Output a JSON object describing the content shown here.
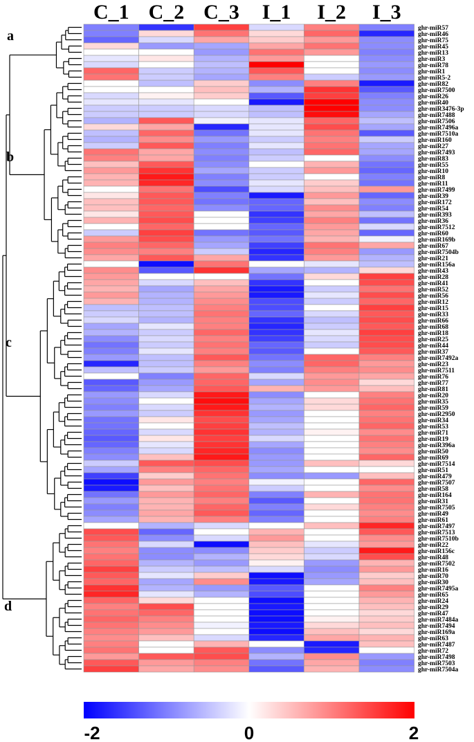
{
  "chart_data": {
    "type": "heatmap",
    "title": "",
    "columns": [
      "C_1",
      "C_2",
      "C_3",
      "I_1",
      "I_2",
      "I_3"
    ],
    "rows": [
      "ghr-miR57",
      "ghr-miR46",
      "ghr-miR75",
      "ghr-miR45",
      "ghr-miR13",
      "ghr-miR3",
      "ghr-miR78",
      "ghr-miR1",
      "ghr-miR5-2",
      "ghr-miR82",
      "ghr-miR7500",
      "ghr-miR26",
      "ghr-miR40",
      "ghr-miR3476-3p",
      "ghr-miR7488",
      "ghr-miR7506",
      "ghr-miR7496a",
      "ghr-miR7510a",
      "ghr-miR160",
      "ghr-miR27",
      "ghr-miR7493",
      "ghr-miR83",
      "ghr-miR55",
      "ghr-miR10",
      "ghr-miR8",
      "ghr-miR11",
      "ghr-miR7499",
      "ghr-miR39",
      "ghr-miR172",
      "ghr-miR54",
      "ghr-miR393",
      "ghr-miR36",
      "ghr-miR7512",
      "ghr-miR60",
      "ghr-miR169b",
      "ghr-miR67",
      "ghr-miR7504b",
      "ghr-miR21",
      "ghr-miR156a",
      "ghr-miR43",
      "ghr-miR28",
      "ghr-miR41",
      "ghr-miR52",
      "ghr-miR56",
      "ghr-miR12",
      "ghr-miR15",
      "ghr-miR33",
      "ghr-miR66",
      "ghr-miR68",
      "ghr-miR18",
      "ghr-miR25",
      "ghr-miR44",
      "ghr-miR37",
      "ghr-miR7492a",
      "ghr-miR23",
      "ghr-miR7511",
      "ghr-miR76",
      "ghr-miR77",
      "ghr-miR81",
      "ghr-miR20",
      "ghr-miR35",
      "ghr-miR59",
      "ghr-miR2950",
      "ghr-miR34",
      "ghr-miR53",
      "ghr-miR71",
      "ghr-miR19",
      "ghr-miR396a",
      "ghr-miR50",
      "ghr-miR69",
      "ghr-miR7514",
      "ghr-miR51",
      "ghr-miR479",
      "ghr-miR7507",
      "ghr-miR58",
      "ghr-miR164",
      "ghr-miR31",
      "ghr-miR7505",
      "ghr-miR49",
      "ghr-miR61",
      "ghr-miR7497",
      "ghr-miR7513",
      "ghr-miR7510b",
      "ghr-miR22",
      "ghr-miR156c",
      "ghr-miR48",
      "ghr-miR7502",
      "ghr-miR16",
      "ghr-miR70",
      "ghr-miR30",
      "ghr-miR7495a",
      "ghr-miR65",
      "ghr-miR24",
      "ghr-miR29",
      "ghr-miR47",
      "ghr-miR7484a",
      "ghr-miR7494",
      "ghr-miR169a",
      "ghr-miR63",
      "ghr-miR7487",
      "ghr-miR72",
      "ghr-miR7498",
      "ghr-miR7503",
      "ghr-miR7504a"
    ],
    "values": [
      [
        -1.0,
        -1.6,
        1.5,
        -0.3,
        1.0,
        -1.0
      ],
      [
        -1.0,
        0.3,
        1.1,
        0.3,
        1.2,
        -1.7
      ],
      [
        -1.2,
        -0.3,
        0.7,
        0.4,
        0.8,
        -0.9
      ],
      [
        0.3,
        -0.8,
        -0.7,
        0.7,
        1.1,
        -0.9
      ],
      [
        0.0,
        0.0,
        -0.8,
        1.1,
        0.8,
        -1.0
      ],
      [
        -0.2,
        0.2,
        -0.6,
        0.8,
        0.0,
        -0.9
      ],
      [
        -0.3,
        0.0,
        -0.5,
        2.0,
        0.0,
        -0.8
      ],
      [
        1.2,
        -0.4,
        -0.6,
        1.3,
        0.0,
        -0.9
      ],
      [
        1.1,
        -0.4,
        -0.7,
        1.0,
        -0.4,
        -0.8
      ],
      [
        0.0,
        -0.5,
        0.4,
        -0.9,
        1.0,
        -1.8
      ],
      [
        0.0,
        0.0,
        0.5,
        -0.6,
        1.6,
        -1.3
      ],
      [
        -0.3,
        0.1,
        0.4,
        -1.3,
        1.5,
        -1.0
      ],
      [
        -0.2,
        -0.2,
        0.0,
        -1.8,
        2.0,
        -0.9
      ],
      [
        -0.4,
        -0.4,
        -0.3,
        -0.5,
        2.0,
        -0.9
      ],
      [
        -0.4,
        -0.4,
        -0.3,
        -0.5,
        1.9,
        -0.7
      ],
      [
        -0.6,
        1.3,
        -0.1,
        -0.2,
        1.2,
        -0.5
      ],
      [
        0.3,
        0.7,
        -1.7,
        -0.2,
        1.4,
        -0.7
      ],
      [
        -0.5,
        1.2,
        -1.1,
        -0.2,
        1.1,
        -1.3
      ],
      [
        -0.6,
        0.9,
        -0.8,
        -0.4,
        1.0,
        -0.4
      ],
      [
        -0.4,
        1.3,
        -1.0,
        -0.2,
        1.1,
        -0.7
      ],
      [
        1.1,
        0.7,
        -0.9,
        -0.5,
        1.2,
        -0.7
      ],
      [
        1.0,
        0.7,
        -1.0,
        -0.4,
        0.0,
        -0.9
      ],
      [
        0.5,
        1.3,
        -0.9,
        0.0,
        0.6,
        -1.1
      ],
      [
        0.8,
        1.6,
        -0.7,
        -0.4,
        0.8,
        -1.2
      ],
      [
        0.6,
        1.8,
        -1.0,
        -0.4,
        0.0,
        -1.0
      ],
      [
        0.6,
        1.7,
        -0.9,
        -0.2,
        0.4,
        -1.1
      ],
      [
        0.0,
        1.1,
        -1.4,
        -0.3,
        0.5,
        0.8
      ],
      [
        0.2,
        1.3,
        -1.0,
        -1.8,
        0.8,
        -1.2
      ],
      [
        0.5,
        1.3,
        -1.1,
        -1.2,
        0.5,
        -0.9
      ],
      [
        0.5,
        1.2,
        -0.9,
        -1.2,
        0.9,
        -1.0
      ],
      [
        0.2,
        1.3,
        0.0,
        -1.6,
        0.7,
        -0.5
      ],
      [
        0.6,
        1.4,
        0.0,
        -1.5,
        1.0,
        -1.1
      ],
      [
        0.0,
        1.2,
        0.0,
        -1.2,
        0.8,
        -0.3
      ],
      [
        -0.4,
        1.5,
        -1.1,
        -1.3,
        0.7,
        -1.2
      ],
      [
        0.8,
        1.4,
        -0.8,
        -1.1,
        0.6,
        -0.1
      ],
      [
        1.0,
        1.2,
        -0.7,
        -1.5,
        1.1,
        0.7
      ],
      [
        0.9,
        1.0,
        -0.4,
        -1.7,
        1.0,
        -0.8
      ],
      [
        0.7,
        1.3,
        0.7,
        -1.6,
        0.8,
        -0.6
      ],
      [
        0.0,
        -1.9,
        1.1,
        0.0,
        -0.2,
        -0.5
      ],
      [
        0.9,
        -1.3,
        1.6,
        -0.7,
        -0.6,
        0.3
      ],
      [
        0.8,
        0.0,
        0.0,
        -1.1,
        0.3,
        1.5
      ],
      [
        0.7,
        -0.3,
        0.5,
        -1.6,
        0.0,
        1.4
      ],
      [
        0.6,
        -0.7,
        0.7,
        -1.8,
        -0.4,
        1.1
      ],
      [
        0.8,
        -0.6,
        0.8,
        -1.8,
        -0.2,
        1.4
      ],
      [
        0.6,
        -0.6,
        0.9,
        -1.4,
        -0.4,
        1.2
      ],
      [
        -0.5,
        -0.5,
        1.0,
        -1.4,
        0.0,
        1.5
      ],
      [
        -0.4,
        -0.5,
        1.1,
        -1.2,
        -0.3,
        1.3
      ],
      [
        -0.3,
        -0.6,
        1.0,
        -1.6,
        -0.5,
        1.4
      ],
      [
        -0.7,
        -0.2,
        1.0,
        -1.7,
        -0.4,
        1.3
      ],
      [
        -0.6,
        -0.4,
        1.2,
        -1.6,
        -0.2,
        1.5
      ],
      [
        -0.9,
        -0.3,
        1.0,
        -1.5,
        -0.3,
        1.4
      ],
      [
        -1.1,
        -0.4,
        1.1,
        -1.2,
        -0.4,
        1.4
      ],
      [
        -1.0,
        -0.2,
        1.0,
        -1.3,
        0.0,
        1.3
      ],
      [
        -0.8,
        -0.5,
        1.3,
        -1.1,
        1.2,
        1.0
      ],
      [
        -1.7,
        -0.5,
        1.0,
        -0.9,
        1.2,
        0.8
      ],
      [
        -0.5,
        -0.4,
        0.8,
        -1.0,
        1.0,
        0.9
      ],
      [
        0.0,
        -1.0,
        1.2,
        -0.3,
        0.8,
        0.7
      ],
      [
        -1.3,
        -0.8,
        1.2,
        -0.7,
        0.9,
        0.3
      ],
      [
        -1.2,
        -0.7,
        1.3,
        0.6,
        0.8,
        0.5
      ],
      [
        -0.8,
        -0.3,
        1.8,
        -0.9,
        0.0,
        1.0
      ],
      [
        -0.9,
        0.0,
        1.9,
        -0.7,
        0.3,
        1.1
      ],
      [
        -1.0,
        -0.3,
        1.8,
        -0.6,
        0.3,
        1.2
      ],
      [
        -0.8,
        -0.4,
        1.6,
        -0.8,
        0.0,
        1.0
      ],
      [
        -1.1,
        0.2,
        1.4,
        -0.7,
        0.0,
        1.1
      ],
      [
        -1.1,
        0.0,
        1.5,
        -0.5,
        0.0,
        1.2
      ],
      [
        -1.2,
        -0.3,
        1.6,
        -0.6,
        0.1,
        0.9
      ],
      [
        -1.3,
        0.2,
        1.5,
        -0.3,
        0.0,
        1.1
      ],
      [
        -1.2,
        -0.2,
        1.6,
        -0.7,
        0.0,
        1.0
      ],
      [
        -1.0,
        -0.3,
        1.7,
        -0.9,
        0.0,
        0.9
      ],
      [
        -0.9,
        0.5,
        1.8,
        -0.8,
        0.0,
        1.2
      ],
      [
        -0.4,
        1.3,
        1.4,
        -0.8,
        0.5,
        0.3
      ],
      [
        -0.7,
        1.0,
        1.2,
        -0.7,
        0.0,
        0.0
      ],
      [
        -1.5,
        0.4,
        1.1,
        -0.9,
        -0.8,
        0.5
      ],
      [
        -1.9,
        0.8,
        1.0,
        -0.1,
        0.0,
        1.2
      ],
      [
        -1.8,
        0.5,
        1.1,
        -0.4,
        0.0,
        0.9
      ],
      [
        -1.1,
        0.8,
        1.2,
        -1.0,
        0.6,
        1.1
      ],
      [
        -0.8,
        0.6,
        1.0,
        -1.3,
        0.0,
        1.1
      ],
      [
        -1.0,
        0.6,
        1.2,
        -1.0,
        0.3,
        1.0
      ],
      [
        -0.9,
        0.7,
        1.3,
        -1.2,
        0.0,
        0.9
      ],
      [
        -0.7,
        0.6,
        1.0,
        -1.0,
        0.0,
        1.0
      ],
      [
        0.0,
        -0.6,
        -0.3,
        0.0,
        0.5,
        1.7
      ],
      [
        1.4,
        -1.2,
        0.0,
        0.6,
        0.0,
        1.3
      ],
      [
        1.3,
        -0.9,
        -0.3,
        0.8,
        0.0,
        0.9
      ],
      [
        1.1,
        -0.3,
        -1.9,
        0.5,
        -0.2,
        0.8
      ],
      [
        1.0,
        -0.9,
        -0.9,
        0.4,
        -0.4,
        1.8
      ],
      [
        1.1,
        -0.9,
        -0.6,
        0.3,
        -0.3,
        1.4
      ],
      [
        1.2,
        -0.6,
        -0.8,
        0.1,
        -0.8,
        0.6
      ],
      [
        1.5,
        -0.4,
        -0.5,
        -0.3,
        -0.9,
        0.8
      ],
      [
        1.3,
        -0.2,
        0.4,
        -1.9,
        -0.8,
        0.4
      ],
      [
        1.2,
        -0.7,
        0.9,
        -1.8,
        -0.7,
        0.5
      ],
      [
        1.6,
        -0.6,
        -0.8,
        -1.3,
        0.0,
        1.0
      ],
      [
        1.7,
        -0.2,
        -0.6,
        -1.4,
        0.0,
        0.8
      ],
      [
        1.2,
        0.3,
        0.0,
        -1.9,
        0.0,
        0.6
      ],
      [
        1.0,
        1.4,
        0.0,
        -1.8,
        0.0,
        0.5
      ],
      [
        1.1,
        1.2,
        0.0,
        -1.9,
        0.0,
        0.3
      ],
      [
        1.2,
        1.0,
        0.0,
        -1.9,
        0.1,
        0.4
      ],
      [
        1.1,
        0.9,
        -0.1,
        -1.8,
        0.3,
        0.5
      ],
      [
        1.0,
        0.8,
        0.0,
        -1.9,
        0.5,
        0.3
      ],
      [
        0.9,
        0.5,
        -0.3,
        -1.7,
        0.7,
        0.6
      ],
      [
        1.0,
        0.0,
        0.6,
        0.0,
        -1.8,
        0.5
      ],
      [
        1.1,
        0.0,
        1.3,
        -0.9,
        -1.7,
        0.0
      ],
      [
        0.8,
        1.3,
        1.4,
        -0.6,
        0.9,
        -0.8
      ],
      [
        1.3,
        0.8,
        1.0,
        -1.1,
        0.7,
        -1.0
      ],
      [
        1.5,
        0.7,
        0.9,
        -1.3,
        0.6,
        -0.9
      ]
    ],
    "clusters": [
      {
        "label": "a",
        "start": 0,
        "end": 8
      },
      {
        "label": "b",
        "start": 9,
        "end": 37
      },
      {
        "label": "c",
        "start": 38,
        "end": 79
      },
      {
        "label": "d",
        "start": 80,
        "end": 103
      }
    ],
    "colorscale": {
      "low": "#0000ff",
      "mid": "#ffffff",
      "high": "#ff0000",
      "min": -2,
      "max": 2
    },
    "legend": {
      "ticks": [
        "-2",
        "0",
        "2"
      ],
      "placement": "bottom"
    }
  }
}
